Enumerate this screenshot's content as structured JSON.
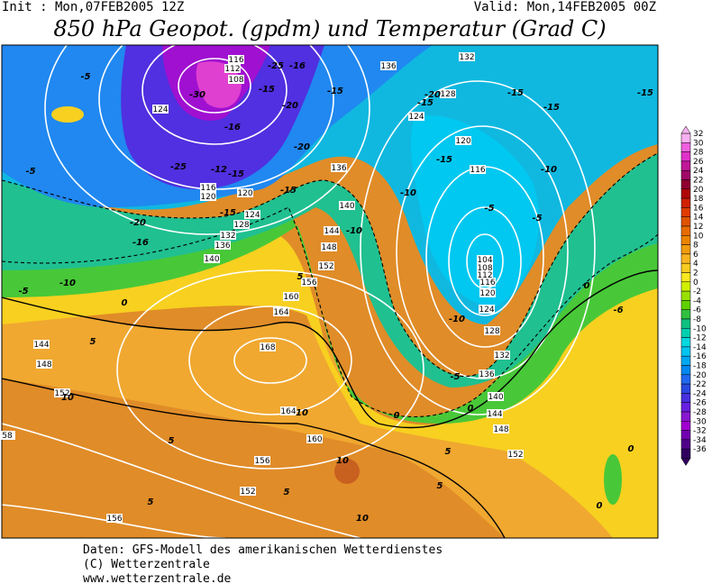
{
  "header": {
    "init": "Init : Mon,07FEB2005 12Z",
    "valid": "Valid: Mon,14FEB2005 00Z",
    "title": "850 hPa Geopot. (gpdm) und Temperatur (Grad C)"
  },
  "colorbar": {
    "ticks": [
      32,
      30,
      28,
      26,
      24,
      22,
      20,
      18,
      16,
      14,
      12,
      10,
      8,
      6,
      4,
      2,
      0,
      -2,
      -4,
      -6,
      -8,
      -10,
      -12,
      -14,
      -16,
      -18,
      -20,
      -22,
      -24,
      -26,
      -28,
      -30,
      -32,
      -34,
      -36
    ],
    "colors": [
      "#f8b0f0",
      "#f060e0",
      "#e030c8",
      "#c01898",
      "#a00868",
      "#900030",
      "#b00808",
      "#d02000",
      "#e03c00",
      "#e05400",
      "#e86c00",
      "#ec8400",
      "#f09c10",
      "#f8b420",
      "#f8cc20",
      "#f8e820",
      "#d0f000",
      "#98e000",
      "#60d000",
      "#30c040",
      "#10c080",
      "#00d0b0",
      "#00d8e0",
      "#00c4f0",
      "#00a8f0",
      "#0088f0",
      "#2068f0",
      "#2848e0",
      "#4830e0",
      "#6820e0",
      "#8818d0",
      "#a000d0",
      "#7000b0",
      "#500088",
      "#300060"
    ]
  },
  "map": {
    "geopotential_labels": [
      "116",
      "112",
      "108",
      "124",
      "136",
      "132",
      "128",
      "124",
      "120",
      "116",
      "116",
      "120",
      "120",
      "124",
      "128",
      "132",
      "136",
      "140",
      "144",
      "148",
      "152",
      "156",
      "160",
      "164",
      "168",
      "164",
      "160",
      "156",
      "152",
      "156",
      "140",
      "136",
      "104",
      "108",
      "112",
      "116",
      "120",
      "124",
      "128",
      "132",
      "136",
      "140",
      "144",
      "148",
      "152",
      "144",
      "148",
      "152",
      "58"
    ],
    "temperature_labels": [
      -5,
      -30,
      -25,
      -16,
      -15,
      -20,
      -15,
      -16,
      -20,
      -15,
      -12,
      -25,
      -20,
      -16,
      -15,
      -15,
      -10,
      -10,
      -15,
      -20,
      -15,
      -15,
      -15,
      -15,
      -10,
      -5,
      -5,
      -5,
      -5,
      -10,
      0,
      5,
      5,
      -10,
      -5,
      0,
      0,
      5,
      5,
      0,
      0,
      10,
      10,
      5,
      5,
      10,
      5,
      10,
      -6,
      0
    ]
  },
  "footer": {
    "lines": [
      "Daten: GFS-Modell des amerikanischen Wetterdienstes",
      "(C) Wetterzentrale",
      "www.wetterzentrale.de"
    ]
  }
}
